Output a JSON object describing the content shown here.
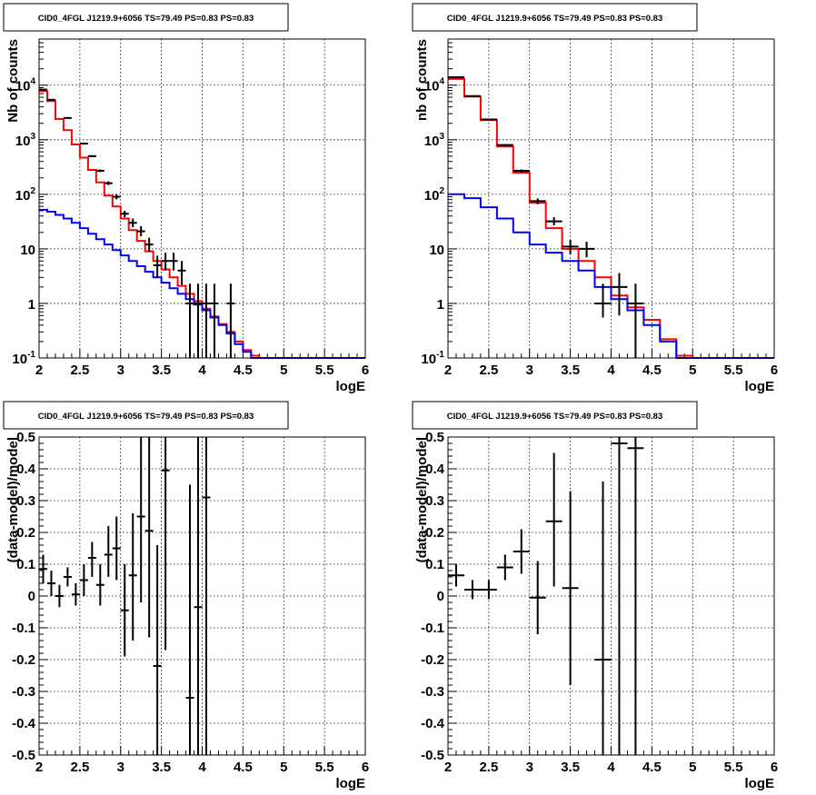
{
  "chart_data": [
    {
      "panel": "top-left",
      "type": "line",
      "title": "CID0_4FGL J1219.9+6056 TS=79.49 PS=0.83 PS=0.83",
      "xlabel": "logE",
      "ylabel": "Nb of counts",
      "xlim": [
        2,
        6
      ],
      "ylim": [
        0.1,
        70000
      ],
      "yscale": "log",
      "grid": true,
      "x_ticks": [
        "2",
        "2.5",
        "3",
        "3.5",
        "4",
        "4.5",
        "5",
        "5.5",
        "6"
      ],
      "y_ticks": [
        {
          "value": 0.1,
          "base": "10",
          "exp": "-1"
        },
        {
          "value": 1,
          "label": "1"
        },
        {
          "value": 10,
          "label": "10"
        },
        {
          "value": 100,
          "base": "10",
          "exp": "2"
        },
        {
          "value": 1000,
          "base": "10",
          "exp": "3"
        },
        {
          "value": 10000,
          "base": "10",
          "exp": "4"
        }
      ],
      "bin_edges": [
        2.0,
        2.1,
        2.2,
        2.3,
        2.4,
        2.5,
        2.6,
        2.7,
        2.8,
        2.9,
        3.0,
        3.1,
        3.2,
        3.3,
        3.4,
        3.5,
        3.6,
        3.7,
        3.8,
        3.9,
        4.0,
        4.1,
        4.2,
        4.3,
        4.4,
        4.5,
        4.6,
        4.7,
        4.8,
        4.9,
        5.0,
        5.1,
        5.2,
        5.3,
        5.4,
        5.5,
        5.6,
        5.7,
        5.8,
        5.9,
        6.0
      ],
      "series": [
        {
          "color": "#ff0000",
          "style": "step",
          "values": [
            7800,
            5100,
            2400,
            1500,
            820,
            470,
            280,
            165,
            95,
            60,
            36,
            22,
            14,
            9,
            6,
            4.2,
            3.0,
            2.1,
            1.5,
            1.1,
            0.8,
            0.58,
            0.42,
            0.3,
            0.2,
            0.14,
            0.11,
            0.1,
            0.1,
            0.1,
            0.1,
            0.1,
            0.1,
            0.1,
            0.1,
            0.1,
            0.1,
            0.1,
            0.1,
            0.1
          ]
        },
        {
          "color": "#0000ff",
          "style": "step",
          "values": [
            52,
            48,
            42,
            36,
            30,
            24,
            19,
            15,
            12,
            9.5,
            7.6,
            6.0,
            4.8,
            3.8,
            3.0,
            2.4,
            1.9,
            1.5,
            1.2,
            0.95,
            0.75,
            0.55,
            0.4,
            0.28,
            0.18,
            0.13,
            0.1,
            0.1,
            0.1,
            0.1,
            0.1,
            0.1,
            0.1,
            0.1,
            0.1,
            0.1,
            0.1,
            0.1,
            0.1,
            0.1
          ]
        }
      ],
      "points": [
        {
          "x": 2.05,
          "y": 8300,
          "dx": 0.05,
          "ylo": 8100,
          "yhi": 8500
        },
        {
          "x": 2.15,
          "y": 5400,
          "dx": 0.05,
          "ylo": 5250,
          "yhi": 5550
        },
        {
          "x": 2.35,
          "y": 2500,
          "dx": 0.05,
          "ylo": 2400,
          "yhi": 2600
        },
        {
          "x": 2.55,
          "y": 850,
          "dx": 0.05,
          "ylo": 815,
          "yhi": 880
        },
        {
          "x": 2.65,
          "y": 500,
          "dx": 0.05,
          "ylo": 480,
          "yhi": 520
        },
        {
          "x": 2.75,
          "y": 270,
          "dx": 0.05,
          "ylo": 255,
          "yhi": 285
        },
        {
          "x": 2.85,
          "y": 160,
          "dx": 0.05,
          "ylo": 148,
          "yhi": 173
        },
        {
          "x": 2.95,
          "y": 90,
          "dx": 0.05,
          "ylo": 81,
          "yhi": 100
        },
        {
          "x": 3.05,
          "y": 44,
          "dx": 0.05,
          "ylo": 38,
          "yhi": 50
        },
        {
          "x": 3.15,
          "y": 30,
          "dx": 0.05,
          "ylo": 25,
          "yhi": 36
        },
        {
          "x": 3.25,
          "y": 21,
          "dx": 0.05,
          "ylo": 17,
          "yhi": 26
        },
        {
          "x": 3.35,
          "y": 12,
          "dx": 0.05,
          "ylo": 9,
          "yhi": 16
        },
        {
          "x": 3.45,
          "y": 5,
          "dx": 0.05,
          "ylo": 3,
          "yhi": 7.5
        },
        {
          "x": 3.55,
          "y": 6,
          "dx": 0.05,
          "ylo": 4,
          "yhi": 8.5
        },
        {
          "x": 3.65,
          "y": 6,
          "dx": 0.05,
          "ylo": 4,
          "yhi": 8.5
        },
        {
          "x": 3.75,
          "y": 4,
          "dx": 0.05,
          "ylo": 2.2,
          "yhi": 6
        },
        {
          "x": 3.85,
          "y": 1,
          "dx": 0.05,
          "ylo": 0.1,
          "yhi": 2.3
        },
        {
          "x": 3.95,
          "y": 1,
          "dx": 0.05,
          "ylo": 0.1,
          "yhi": 2.3
        },
        {
          "x": 4.05,
          "y": 1,
          "dx": 0.05,
          "ylo": 0.1,
          "yhi": 2.3
        },
        {
          "x": 4.15,
          "y": 1,
          "dx": 0.05,
          "ylo": 0.1,
          "yhi": 2.3
        },
        {
          "x": 4.35,
          "y": 1,
          "dx": 0.05,
          "ylo": 0.1,
          "yhi": 2.3
        }
      ]
    },
    {
      "panel": "top-right",
      "type": "line",
      "title": "CID0_4FGL J1219.9+6056 TS=79.49 PS=0.83 PS=0.83",
      "xlabel": "logE",
      "ylabel": "nb of counts",
      "xlim": [
        2,
        6
      ],
      "ylim": [
        0.1,
        70000
      ],
      "yscale": "log",
      "grid": true,
      "x_ticks": [
        "2",
        "2.5",
        "3",
        "3.5",
        "4",
        "4.5",
        "5",
        "5.5",
        "6"
      ],
      "y_ticks": [
        {
          "value": 0.1,
          "base": "10",
          "exp": "-1"
        },
        {
          "value": 1,
          "label": "1"
        },
        {
          "value": 10,
          "label": "10"
        },
        {
          "value": 100,
          "base": "10",
          "exp": "2"
        },
        {
          "value": 1000,
          "base": "10",
          "exp": "3"
        },
        {
          "value": 10000,
          "base": "10",
          "exp": "4"
        }
      ],
      "bin_edges": [
        2.0,
        2.2,
        2.4,
        2.6,
        2.8,
        3.0,
        3.2,
        3.4,
        3.6,
        3.8,
        4.0,
        4.2,
        4.4,
        4.6,
        4.8,
        5.0,
        5.2,
        5.4,
        5.6,
        5.8,
        6.0
      ],
      "series": [
        {
          "color": "#ff0000",
          "style": "step",
          "values": [
            13000,
            6200,
            2300,
            750,
            250,
            70,
            24,
            10,
            6,
            3.0,
            1.4,
            0.85,
            0.5,
            0.22,
            0.11,
            0.1,
            0.1,
            0.1,
            0.1,
            0.1
          ]
        },
        {
          "color": "#0000ff",
          "style": "step",
          "values": [
            100,
            85,
            58,
            36,
            20,
            12,
            8.5,
            6,
            4,
            2,
            1.2,
            0.75,
            0.4,
            0.2,
            0.1,
            0.1,
            0.1,
            0.1,
            0.1,
            0.1
          ]
        }
      ],
      "points": [
        {
          "x": 2.1,
          "y": 14000,
          "dx": 0.1,
          "ylo": 13700,
          "yhi": 14300
        },
        {
          "x": 2.3,
          "y": 6300,
          "dx": 0.1,
          "ylo": 6150,
          "yhi": 6450
        },
        {
          "x": 2.5,
          "y": 2350,
          "dx": 0.1,
          "ylo": 2300,
          "yhi": 2400
        },
        {
          "x": 2.7,
          "y": 800,
          "dx": 0.1,
          "ylo": 772,
          "yhi": 828
        },
        {
          "x": 2.9,
          "y": 270,
          "dx": 0.1,
          "ylo": 254,
          "yhi": 286
        },
        {
          "x": 3.1,
          "y": 75,
          "dx": 0.1,
          "ylo": 66,
          "yhi": 84
        },
        {
          "x": 3.3,
          "y": 32,
          "dx": 0.1,
          "ylo": 27,
          "yhi": 38
        },
        {
          "x": 3.5,
          "y": 11,
          "dx": 0.1,
          "ylo": 8,
          "yhi": 14.5
        },
        {
          "x": 3.7,
          "y": 10,
          "dx": 0.1,
          "ylo": 7,
          "yhi": 13.5
        },
        {
          "x": 3.9,
          "y": 1,
          "dx": 0.1,
          "ylo": 0.55,
          "yhi": 2.3
        },
        {
          "x": 4.1,
          "y": 2,
          "dx": 0.1,
          "ylo": 0.6,
          "yhi": 3.6
        },
        {
          "x": 4.3,
          "y": 1,
          "dx": 0.1,
          "ylo": 0.1,
          "yhi": 2.3
        }
      ]
    },
    {
      "panel": "bottom-left",
      "type": "scatter",
      "title": "CID0_4FGL J1219.9+6056 TS=79.49 PS=0.83 PS=0.83",
      "xlabel": "logE",
      "ylabel": "(data-model)/model",
      "xlim": [
        2,
        6
      ],
      "ylim": [
        -0.5,
        0.5
      ],
      "grid": true,
      "x_ticks": [
        "2",
        "2.5",
        "3",
        "3.5",
        "4",
        "4.5",
        "5",
        "5.5",
        "6"
      ],
      "y_ticks": [
        "-0.5",
        "-0.4",
        "-0.3",
        "-0.2",
        "-0.1",
        "0",
        "0.1",
        "0.2",
        "0.3",
        "0.4",
        "0.5"
      ],
      "points": [
        {
          "x": 2.05,
          "y": 0.085,
          "dx": 0.05,
          "ylo": 0.04,
          "yhi": 0.13
        },
        {
          "x": 2.15,
          "y": 0.04,
          "dx": 0.05,
          "ylo": 0.0,
          "yhi": 0.08
        },
        {
          "x": 2.25,
          "y": 0.0,
          "dx": 0.05,
          "ylo": -0.035,
          "yhi": 0.035
        },
        {
          "x": 2.35,
          "y": 0.06,
          "dx": 0.05,
          "ylo": 0.03,
          "yhi": 0.09
        },
        {
          "x": 2.45,
          "y": 0.005,
          "dx": 0.05,
          "ylo": -0.03,
          "yhi": 0.04
        },
        {
          "x": 2.55,
          "y": 0.05,
          "dx": 0.05,
          "ylo": 0.0,
          "yhi": 0.1
        },
        {
          "x": 2.65,
          "y": 0.12,
          "dx": 0.05,
          "ylo": 0.06,
          "yhi": 0.17
        },
        {
          "x": 2.75,
          "y": 0.035,
          "dx": 0.05,
          "ylo": -0.03,
          "yhi": 0.1
        },
        {
          "x": 2.85,
          "y": 0.13,
          "dx": 0.05,
          "ylo": 0.06,
          "yhi": 0.22
        },
        {
          "x": 2.95,
          "y": 0.15,
          "dx": 0.05,
          "ylo": 0.05,
          "yhi": 0.25
        },
        {
          "x": 3.05,
          "y": -0.045,
          "dx": 0.05,
          "ylo": -0.19,
          "yhi": 0.1
        },
        {
          "x": 3.15,
          "y": 0.065,
          "dx": 0.05,
          "ylo": -0.14,
          "yhi": 0.26
        },
        {
          "x": 3.25,
          "y": 0.25,
          "dx": 0.05,
          "ylo": -0.02,
          "yhi": 0.5
        },
        {
          "x": 3.35,
          "y": 0.205,
          "dx": 0.05,
          "ylo": -0.13,
          "yhi": 0.5
        },
        {
          "x": 3.45,
          "y": -0.22,
          "dx": 0.05,
          "ylo": -0.5,
          "yhi": 0.16
        },
        {
          "x": 3.55,
          "y": 0.395,
          "dx": 0.05,
          "ylo": -0.17,
          "yhi": 0.5
        },
        {
          "x": 3.85,
          "y": -0.32,
          "dx": 0.05,
          "ylo": -0.5,
          "yhi": 0.35
        },
        {
          "x": 3.95,
          "y": -0.035,
          "dx": 0.05,
          "ylo": -0.5,
          "yhi": 0.5
        },
        {
          "x": 4.05,
          "y": 0.31,
          "dx": 0.05,
          "ylo": -0.5,
          "yhi": 0.5
        }
      ]
    },
    {
      "panel": "bottom-right",
      "type": "scatter",
      "title": "CID0_4FGL J1219.9+6056 TS=79.49 PS=0.83 PS=0.83",
      "xlabel": "logE",
      "ylabel": "(data-model)/model",
      "xlim": [
        2,
        6
      ],
      "ylim": [
        -0.5,
        0.5
      ],
      "grid": true,
      "x_ticks": [
        "2",
        "2.5",
        "3",
        "3.5",
        "4",
        "4.5",
        "5",
        "5.5",
        "6"
      ],
      "y_ticks": [
        "-0.5",
        "-0.4",
        "-0.3",
        "-0.2",
        "-0.1",
        "0",
        "0.1",
        "0.2",
        "0.3",
        "0.4",
        "0.5"
      ],
      "points": [
        {
          "x": 2.1,
          "y": 0.065,
          "dx": 0.1,
          "ylo": 0.03,
          "yhi": 0.1
        },
        {
          "x": 2.3,
          "y": 0.02,
          "dx": 0.1,
          "ylo": -0.01,
          "yhi": 0.05
        },
        {
          "x": 2.5,
          "y": 0.02,
          "dx": 0.1,
          "ylo": -0.01,
          "yhi": 0.05
        },
        {
          "x": 2.7,
          "y": 0.09,
          "dx": 0.1,
          "ylo": 0.05,
          "yhi": 0.13
        },
        {
          "x": 2.9,
          "y": 0.14,
          "dx": 0.1,
          "ylo": 0.07,
          "yhi": 0.21
        },
        {
          "x": 3.1,
          "y": -0.005,
          "dx": 0.1,
          "ylo": -0.12,
          "yhi": 0.11
        },
        {
          "x": 3.3,
          "y": 0.235,
          "dx": 0.1,
          "ylo": 0.03,
          "yhi": 0.45
        },
        {
          "x": 3.5,
          "y": 0.025,
          "dx": 0.1,
          "ylo": -0.28,
          "yhi": 0.33
        },
        {
          "x": 3.9,
          "y": -0.2,
          "dx": 0.1,
          "ylo": -0.5,
          "yhi": 0.36
        },
        {
          "x": 4.1,
          "y": 0.48,
          "dx": 0.1,
          "ylo": -0.5,
          "yhi": 0.5
        },
        {
          "x": 4.3,
          "y": 0.465,
          "dx": 0.1,
          "ylo": -0.5,
          "yhi": 0.5
        }
      ]
    }
  ]
}
